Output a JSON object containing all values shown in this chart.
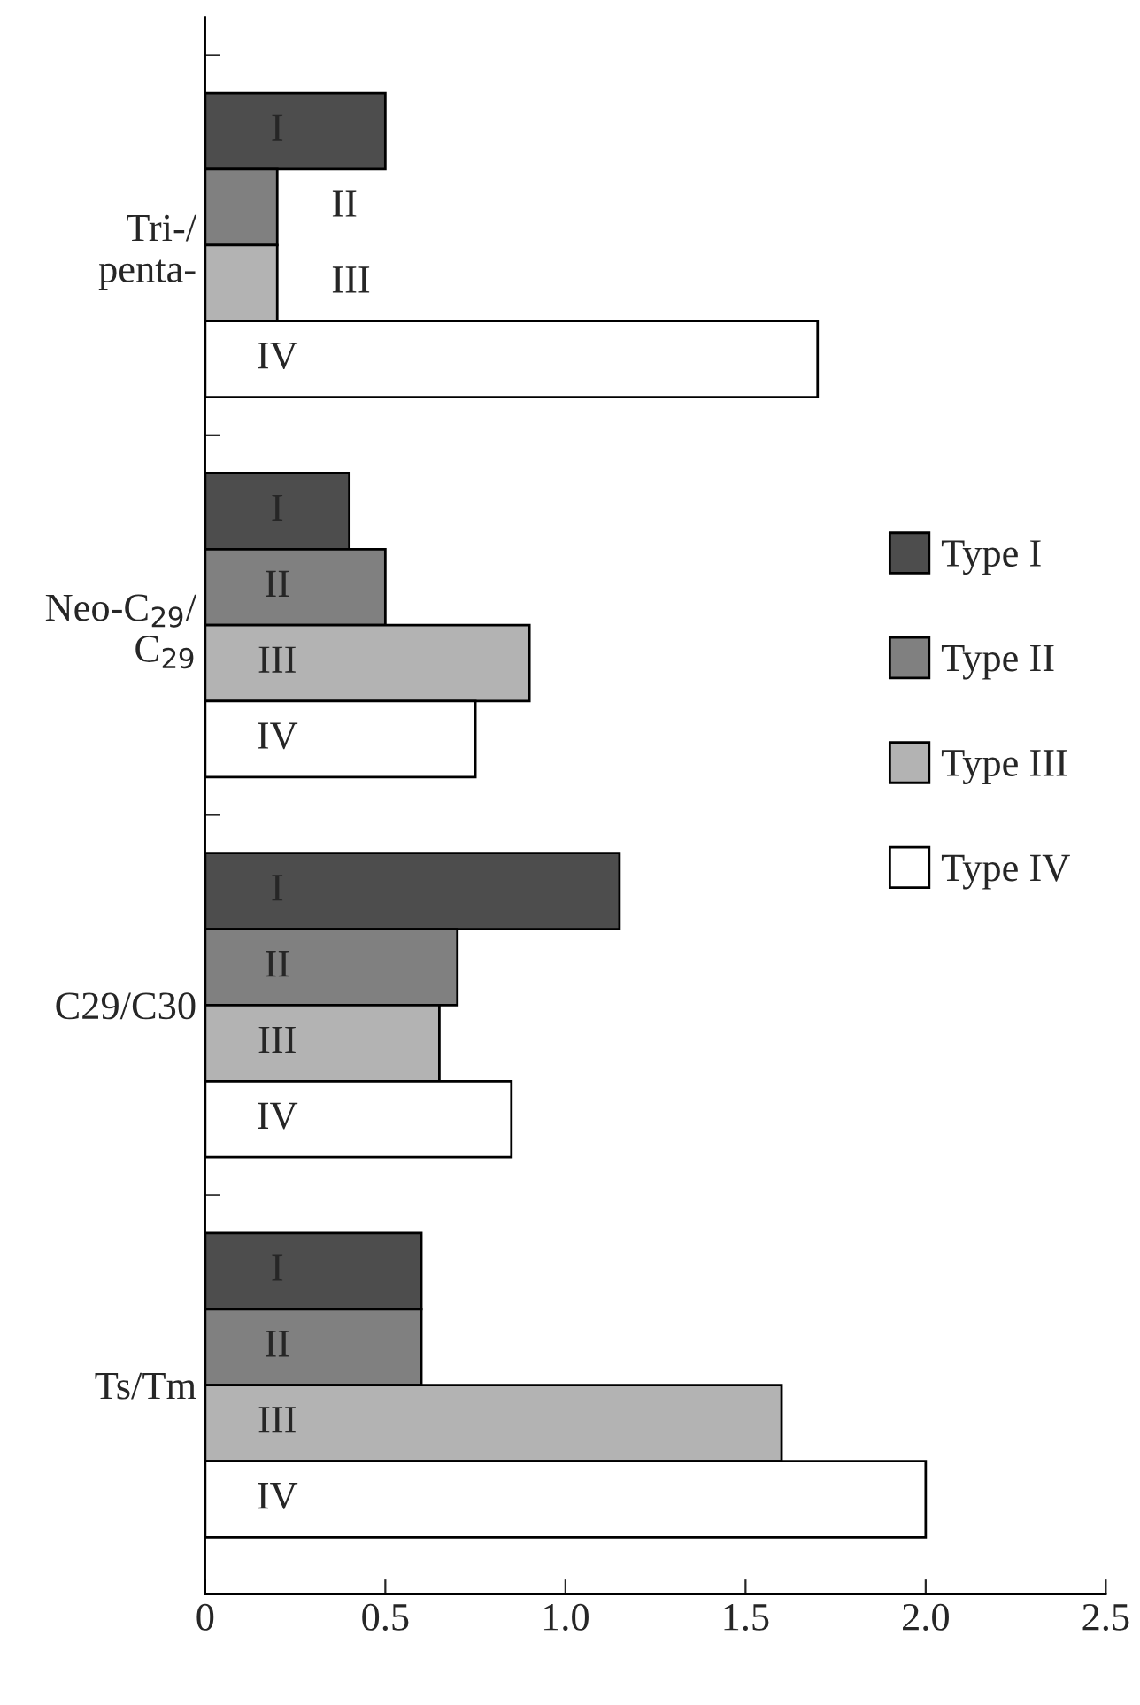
{
  "chart_data": {
    "type": "bar",
    "orientation": "horizontal",
    "categories": [
      "Tri-/\npenta-",
      "Neo-C$_{29}$/\nC$_{29}$",
      "C29/C30",
      "Ts/Tm"
    ],
    "series": [
      {
        "name": "Type I",
        "color": "#4d4d4d",
        "values": [
          0.5,
          0.4,
          1.15,
          0.6
        ],
        "value_labels": [
          "I",
          "I",
          "I",
          "I"
        ]
      },
      {
        "name": "Type II",
        "color": "#808080",
        "values": [
          0.2,
          0.5,
          0.7,
          0.6
        ],
        "value_labels": [
          "II",
          "II",
          "II",
          "II"
        ]
      },
      {
        "name": "Type III",
        "color": "#b3b3b3",
        "values": [
          0.2,
          0.9,
          0.65,
          1.6
        ],
        "value_labels": [
          "III",
          "III",
          "III",
          "III"
        ]
      },
      {
        "name": "Type IV",
        "color": "#ffffff",
        "values": [
          1.7,
          0.75,
          0.85,
          2.0
        ],
        "value_labels": [
          "IV",
          "IV",
          "IV",
          "IV"
        ]
      }
    ],
    "xlim": [
      0,
      2.5
    ],
    "xticks": [
      0,
      {
        "value": 0.5,
        "label": "0.5"
      },
      {
        "value": 1.0,
        "label": "1.0"
      },
      {
        "value": 1.5,
        "label": "1.5"
      },
      {
        "value": 2.0,
        "label": "2.0"
      },
      {
        "value": 2.5,
        "label": "2.5"
      }
    ],
    "legend": "right",
    "grid": false
  }
}
